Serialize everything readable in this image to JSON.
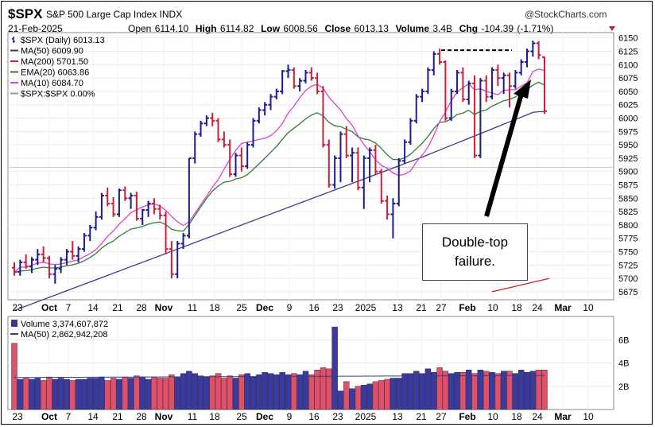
{
  "header": {
    "symbol": "$SPX",
    "name": "S&P 500 Large Cap Index  INDX",
    "date": "21-Feb-2025",
    "open_label": "Open",
    "open": "6114.10",
    "high_label": "High",
    "high": "6114.82",
    "low_label": "Low",
    "low": "6008.56",
    "close_label": "Close",
    "close": "6013.13",
    "volume_label": "Volume",
    "volume": "3.4B",
    "chg_label": "Chg",
    "chg": "-104.39 (-1.71%)",
    "brand": "@StockCharts.com"
  },
  "legend": [
    {
      "label": "$SPX (Daily) 6013.13",
      "color": "#1c1c6b",
      "icon": "bar-icon"
    },
    {
      "label": "MA(50) 6009.90",
      "color": "#3a3a8c",
      "icon": "line-icon"
    },
    {
      "label": "MA(200) 5701.50",
      "color": "#d0203a",
      "icon": "line-icon"
    },
    {
      "label": "EMA(20) 6063.86",
      "color": "#2e7d32",
      "icon": "line-icon"
    },
    {
      "label": "MA(10) 6084.70",
      "color": "#e040d0",
      "icon": "line-icon"
    },
    {
      "label": "$SPX:$SPX 0.00%",
      "color": "#999999",
      "icon": "line-icon"
    }
  ],
  "volume_legend": [
    {
      "label": "Volume 3,374,607,872",
      "color": "#3a3a8c"
    },
    {
      "label": "MA(50) 2,862,942,208",
      "color": "#3a3a8c"
    }
  ],
  "annotation": {
    "line1": "Double-top",
    "line2": "failure."
  },
  "colors": {
    "up": "#1c1c8c",
    "down": "#c8203c",
    "vol_up": "#3a3aa0",
    "vol_down": "#e0506a",
    "ma50": "#3a3a8c",
    "ma200": "#d0203a",
    "ema20": "#2e7d32",
    "ma10": "#e040d0"
  },
  "chart_data": {
    "type": "ohlc",
    "title": "$SPX S&P 500 Large Cap Index",
    "y_ticks": [
      "6150",
      "6125",
      "6100",
      "6075",
      "6050",
      "6025",
      "6000",
      "5975",
      "5950",
      "5925",
      "5900",
      "5875",
      "5850",
      "5825",
      "5800",
      "5775",
      "5750",
      "5725",
      "5700",
      "5675"
    ],
    "ylim": [
      5660,
      6160
    ],
    "volume_ticks": [
      "6B",
      "4B",
      "2B"
    ],
    "volume_ylim": [
      0,
      8.0
    ],
    "x_ticks": [
      "23",
      "Oct",
      "7",
      "14",
      "21",
      "28",
      "Nov",
      "11",
      "18",
      "25",
      "Dec",
      "9",
      "16",
      "23",
      "2025",
      "13",
      "21",
      "27",
      "Feb",
      "10",
      "18",
      "24",
      "Mar",
      "10"
    ],
    "ohlc": [
      [
        5720,
        5730,
        5705,
        5712
      ],
      [
        5712,
        5735,
        5705,
        5730
      ],
      [
        5730,
        5745,
        5718,
        5722
      ],
      [
        5722,
        5740,
        5710,
        5735
      ],
      [
        5735,
        5755,
        5725,
        5745
      ],
      [
        5745,
        5760,
        5730,
        5738
      ],
      [
        5738,
        5742,
        5700,
        5708
      ],
      [
        5708,
        5725,
        5690,
        5718
      ],
      [
        5718,
        5740,
        5710,
        5735
      ],
      [
        5735,
        5755,
        5725,
        5750
      ],
      [
        5750,
        5770,
        5735,
        5742
      ],
      [
        5742,
        5760,
        5730,
        5755
      ],
      [
        5755,
        5785,
        5750,
        5780
      ],
      [
        5780,
        5800,
        5770,
        5795
      ],
      [
        5795,
        5825,
        5790,
        5815
      ],
      [
        5815,
        5860,
        5810,
        5855
      ],
      [
        5855,
        5870,
        5835,
        5840
      ],
      [
        5840,
        5852,
        5815,
        5820
      ],
      [
        5820,
        5868,
        5815,
        5865
      ],
      [
        5865,
        5872,
        5845,
        5850
      ],
      [
        5850,
        5860,
        5830,
        5855
      ],
      [
        5855,
        5862,
        5808,
        5812
      ],
      [
        5812,
        5830,
        5800,
        5828
      ],
      [
        5828,
        5845,
        5815,
        5840
      ],
      [
        5840,
        5850,
        5820,
        5830
      ],
      [
        5830,
        5838,
        5810,
        5818
      ],
      [
        5818,
        5825,
        5745,
        5755
      ],
      [
        5755,
        5770,
        5700,
        5708
      ],
      [
        5708,
        5770,
        5700,
        5765
      ],
      [
        5765,
        5785,
        5755,
        5780
      ],
      [
        5780,
        5925,
        5775,
        5925
      ],
      [
        5925,
        5975,
        5915,
        5970
      ],
      [
        5970,
        5995,
        5965,
        5990
      ],
      [
        5990,
        6005,
        5985,
        6000
      ],
      [
        6000,
        6010,
        5985,
        5995
      ],
      [
        5995,
        6000,
        5955,
        5960
      ],
      [
        5960,
        5975,
        5945,
        5950
      ],
      [
        5950,
        5960,
        5890,
        5895
      ],
      [
        5895,
        5935,
        5890,
        5930
      ],
      [
        5930,
        5945,
        5900,
        5910
      ],
      [
        5910,
        5955,
        5905,
        5950
      ],
      [
        5950,
        6000,
        5945,
        5995
      ],
      [
        5995,
        6020,
        5990,
        6015
      ],
      [
        6015,
        6030,
        6005,
        6025
      ],
      [
        6025,
        6045,
        6015,
        6040
      ],
      [
        6040,
        6055,
        6035,
        6050
      ],
      [
        6050,
        6090,
        6045,
        6088
      ],
      [
        6088,
        6100,
        6075,
        6090
      ],
      [
        6090,
        6095,
        6055,
        6060
      ],
      [
        6060,
        6075,
        6050,
        6070
      ],
      [
        6070,
        6090,
        6065,
        6085
      ],
      [
        6085,
        6095,
        6070,
        6075
      ],
      [
        6075,
        6085,
        6045,
        6050
      ],
      [
        6050,
        6060,
        5945,
        5950
      ],
      [
        5950,
        5960,
        5870,
        5875
      ],
      [
        5875,
        5930,
        5868,
        5925
      ],
      [
        5925,
        5975,
        5880,
        5970
      ],
      [
        5970,
        5985,
        5925,
        5930
      ],
      [
        5930,
        5945,
        5880,
        5935
      ],
      [
        5935,
        5945,
        5865,
        5870
      ],
      [
        5870,
        5930,
        5830,
        5925
      ],
      [
        5925,
        5945,
        5880,
        5940
      ],
      [
        5940,
        5950,
        5895,
        5900
      ],
      [
        5900,
        5905,
        5840,
        5845
      ],
      [
        5845,
        5855,
        5810,
        5820
      ],
      [
        5820,
        5850,
        5775,
        5840
      ],
      [
        5840,
        5925,
        5835,
        5920
      ],
      [
        5920,
        5960,
        5915,
        5955
      ],
      [
        5955,
        6000,
        5950,
        5995
      ],
      [
        5995,
        6045,
        5990,
        6040
      ],
      [
        6040,
        6055,
        6030,
        6050
      ],
      [
        6050,
        6095,
        6045,
        6090
      ],
      [
        6090,
        6125,
        6080,
        6120
      ],
      [
        6120,
        6130,
        6100,
        6105
      ],
      [
        6105,
        6108,
        5995,
        6000
      ],
      [
        6000,
        6055,
        5995,
        6050
      ],
      [
        6050,
        6090,
        6045,
        6085
      ],
      [
        6085,
        6095,
        6030,
        6035
      ],
      [
        6035,
        6070,
        6025,
        6065
      ],
      [
        6065,
        6080,
        5925,
        5930
      ],
      [
        5930,
        6075,
        5925,
        6070
      ],
      [
        6070,
        6080,
        6030,
        6040
      ],
      [
        6040,
        6095,
        6035,
        6090
      ],
      [
        6090,
        6100,
        6060,
        6075
      ],
      [
        6075,
        6085,
        6045,
        6080
      ],
      [
        6080,
        6085,
        6020,
        6060
      ],
      [
        6060,
        6090,
        6055,
        6085
      ],
      [
        6085,
        6110,
        6080,
        6105
      ],
      [
        6105,
        6130,
        6095,
        6125
      ],
      [
        6125,
        6145,
        6115,
        6140
      ],
      [
        6140,
        6144,
        6110,
        6118
      ],
      [
        6114,
        6115,
        6008,
        6013
      ]
    ],
    "volume_up_flags": [
      0,
      1,
      0,
      1,
      1,
      0,
      0,
      1,
      1,
      1,
      0,
      1,
      1,
      1,
      1,
      1,
      0,
      0,
      1,
      0,
      1,
      0,
      1,
      1,
      0,
      0,
      0,
      0,
      1,
      1,
      1,
      1,
      1,
      1,
      0,
      0,
      0,
      0,
      1,
      0,
      1,
      1,
      1,
      1,
      1,
      1,
      1,
      1,
      0,
      1,
      1,
      0,
      0,
      0,
      0,
      1,
      1,
      0,
      1,
      0,
      1,
      1,
      0,
      0,
      0,
      1,
      1,
      1,
      1,
      1,
      1,
      1,
      1,
      0,
      0,
      1,
      1,
      0,
      1,
      0,
      1,
      0,
      1,
      0,
      1,
      0,
      1,
      1,
      1,
      1,
      0,
      0
    ],
    "volume": [
      5.7,
      2.6,
      2.7,
      2.6,
      2.7,
      2.5,
      2.8,
      2.6,
      2.7,
      2.6,
      2.5,
      2.6,
      2.6,
      2.7,
      2.7,
      2.8,
      2.5,
      2.7,
      2.6,
      2.8,
      2.7,
      2.9,
      2.8,
      2.6,
      2.8,
      2.7,
      2.7,
      3.0,
      2.8,
      3.1,
      3.3,
      3.1,
      2.9,
      2.8,
      2.9,
      3.1,
      2.7,
      2.9,
      2.7,
      3.0,
      3.1,
      2.8,
      3.0,
      3.2,
      3.1,
      3.0,
      3.2,
      3.0,
      3.1,
      3.0,
      3.3,
      3.0,
      3.4,
      3.6,
      3.5,
      7.1,
      1.6,
      2.4,
      1.8,
      2.0,
      2.1,
      2.2,
      2.4,
      2.5,
      2.6,
      2.7,
      2.7,
      3.1,
      3.1,
      3.3,
      3.1,
      3.5,
      3.2,
      3.6,
      3.3,
      3.1,
      3.2,
      3.2,
      3.4,
      3.1,
      3.4,
      3.3,
      3.2,
      3.1,
      3.3,
      3.3,
      3.1,
      3.4,
      3.2,
      3.3,
      3.4,
      3.4
    ],
    "xlabel": "",
    "ylabel": ""
  }
}
